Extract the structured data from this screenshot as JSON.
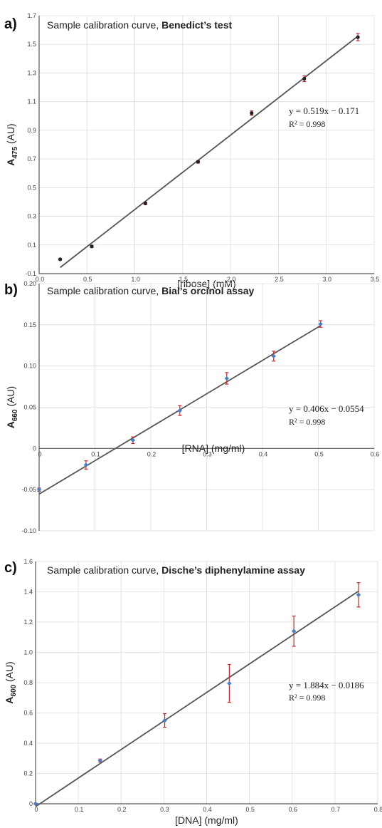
{
  "chart_data": [
    {
      "type": "scatter",
      "panel": "a)",
      "title": "Sample calibration curve, ",
      "title_bold": "Benedict’s test",
      "ylabel": "A",
      "ylabel_sub": "475",
      "ylabel_unit": " (AU)",
      "xlabel": "[ribose] (mM)",
      "xlim": [
        0,
        3.5
      ],
      "ylim": [
        -0.1,
        1.7
      ],
      "xticks": [
        0.0,
        0.5,
        1.0,
        1.5,
        2.0,
        2.5,
        3.0,
        3.5
      ],
      "xtick_labels": [
        "0.0",
        "0.5",
        "1.0",
        "1.5",
        "2.0",
        "2.5",
        "3.0",
        "3.5"
      ],
      "yticks": [
        -0.1,
        0.1,
        0.3,
        0.5,
        0.7,
        0.9,
        1.1,
        1.3,
        1.5,
        1.7
      ],
      "ytick_labels": [
        "-0.1",
        "0.1",
        "0.3",
        "0.5",
        "0.7",
        "0.9",
        "1.1",
        "1.3",
        "1.5",
        "1.7"
      ],
      "grid": true,
      "marker_color": "#222222",
      "x": [
        0.22,
        0.55,
        1.11,
        1.66,
        2.22,
        2.77,
        3.33
      ],
      "y": [
        0.0,
        0.09,
        0.39,
        0.68,
        1.02,
        1.26,
        1.55
      ],
      "yerr": [
        0.005,
        0.008,
        0.008,
        0.008,
        0.015,
        0.02,
        0.025
      ],
      "fit": {
        "x": [
          0.22,
          3.33
        ],
        "y": [
          -0.057,
          1.557
        ]
      },
      "equation": "y = 0.519x − 0.171",
      "r2": "R² = 0.998"
    },
    {
      "type": "scatter",
      "panel": "b)",
      "title": "Sample calibration curve, ",
      "title_bold": "Bial’s orcinol assay",
      "ylabel": "A",
      "ylabel_sub": "660",
      "ylabel_unit": " (AU)",
      "xlabel": "[RNA] (mg/ml)",
      "xlim": [
        0,
        0.6
      ],
      "ylim": [
        -0.1,
        0.2
      ],
      "xticks": [
        0,
        0.1,
        0.2,
        0.3,
        0.4,
        0.5,
        0.6
      ],
      "xtick_labels": [
        "0",
        "0.1",
        "0.2",
        "0.3",
        "0.4",
        "0.5",
        "0.6"
      ],
      "yticks": [
        -0.1,
        -0.05,
        0,
        0.05,
        0.1,
        0.15,
        0.2
      ],
      "ytick_labels": [
        "-0.10",
        "-0.05",
        "0",
        "0.05",
        "0.10",
        "0.15",
        "0.20"
      ],
      "grid": true,
      "marker_color": "#4a7fc1",
      "x": [
        0,
        0.084,
        0.168,
        0.252,
        0.336,
        0.42,
        0.504
      ],
      "y": [
        -0.05,
        -0.02,
        0.01,
        0.046,
        0.085,
        0.112,
        0.151
      ],
      "yerr": [
        0.002,
        0.005,
        0.004,
        0.006,
        0.007,
        0.006,
        0.004
      ],
      "fit": {
        "x": [
          0,
          0.504
        ],
        "y": [
          -0.0554,
          0.149
        ]
      },
      "equation": "y = 0.406x − 0.0554",
      "r2": "R² = 0.998"
    },
    {
      "type": "scatter",
      "panel": "c)",
      "title": "Sample calibration curve, ",
      "title_bold": "Dische’s diphenylamine assay",
      "ylabel": "A",
      "ylabel_sub": "600",
      "ylabel_unit": " (AU)",
      "xlabel": "[DNA] (mg/ml)",
      "xlim": [
        0,
        0.8
      ],
      "ylim": [
        0,
        1.6
      ],
      "xticks": [
        0,
        0.1,
        0.2,
        0.3,
        0.4,
        0.5,
        0.6,
        0.7,
        0.8
      ],
      "xtick_labels": [
        "0",
        "0.1",
        "0.2",
        "0.3",
        "0.4",
        "0.5",
        "0.6",
        "0.7",
        "0.8"
      ],
      "yticks": [
        0,
        0.2,
        0.4,
        0.6,
        0.8,
        1.0,
        1.2,
        1.4,
        1.6
      ],
      "ytick_labels": [
        "0",
        "0.2",
        "0.4",
        "0.6",
        "0.8",
        "1.0",
        "1.2",
        "1.4",
        "1.6"
      ],
      "grid": true,
      "marker_color": "#4a7fc1",
      "x": [
        0,
        0.151,
        0.302,
        0.453,
        0.604,
        0.755
      ],
      "y": [
        0,
        0.285,
        0.55,
        0.795,
        1.14,
        1.38
      ],
      "yerr": [
        0.005,
        0.01,
        0.045,
        0.125,
        0.1,
        0.08
      ],
      "fit": {
        "x": [
          0,
          0.755
        ],
        "y": [
          -0.0186,
          1.404
        ]
      },
      "equation": "y = 1.884x − 0.0186",
      "r2": "R² = 0.998"
    }
  ]
}
